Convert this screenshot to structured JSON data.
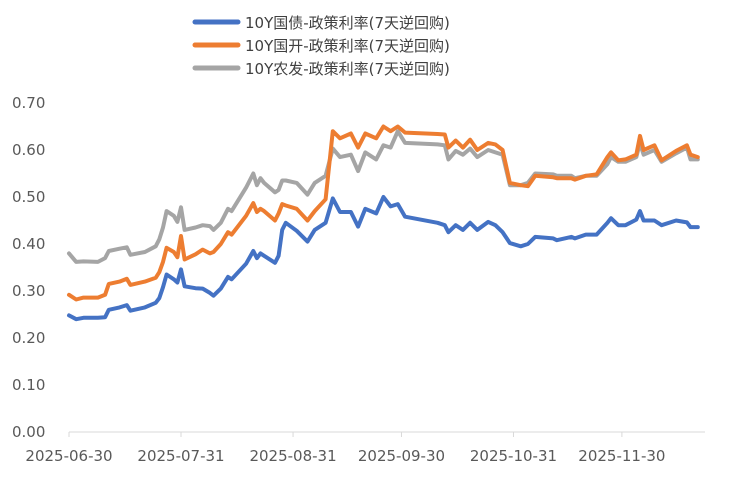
{
  "chart_data": {
    "type": "line",
    "title": "",
    "xlabel": "",
    "ylabel": "",
    "ylim": [
      0,
      0.7
    ],
    "yticks": [
      "0.00",
      "0.10",
      "0.20",
      "0.30",
      "0.40",
      "0.50",
      "0.60",
      "0.70"
    ],
    "xticks": [
      "2025-06-30",
      "2025-07-31",
      "2025-08-31",
      "2025-09-30",
      "2025-10-31",
      "2025-11-30"
    ],
    "xrange": [
      "2025-06-30",
      "2025-12-23"
    ],
    "grid": false,
    "legend_position": "top",
    "series": [
      {
        "name": "10Y国债-政策利率(7天逆回购)",
        "color": "#4472C4",
        "points": [
          [
            "2025-06-30",
            0.248
          ],
          [
            "2025-07-02",
            0.24
          ],
          [
            "2025-07-04",
            0.243
          ],
          [
            "2025-07-08",
            0.243
          ],
          [
            "2025-07-10",
            0.244
          ],
          [
            "2025-07-11",
            0.26
          ],
          [
            "2025-07-14",
            0.265
          ],
          [
            "2025-07-16",
            0.27
          ],
          [
            "2025-07-17",
            0.258
          ],
          [
            "2025-07-21",
            0.265
          ],
          [
            "2025-07-24",
            0.275
          ],
          [
            "2025-07-25",
            0.285
          ],
          [
            "2025-07-26",
            0.308
          ],
          [
            "2025-07-27",
            0.335
          ],
          [
            "2025-07-29",
            0.325
          ],
          [
            "2025-07-30",
            0.318
          ],
          [
            "2025-07-31",
            0.346
          ],
          [
            "2025-08-01",
            0.31
          ],
          [
            "2025-08-04",
            0.306
          ],
          [
            "2025-08-06",
            0.305
          ],
          [
            "2025-08-08",
            0.296
          ],
          [
            "2025-08-09",
            0.29
          ],
          [
            "2025-08-11",
            0.305
          ],
          [
            "2025-08-13",
            0.33
          ],
          [
            "2025-08-14",
            0.325
          ],
          [
            "2025-08-18",
            0.358
          ],
          [
            "2025-08-20",
            0.385
          ],
          [
            "2025-08-21",
            0.37
          ],
          [
            "2025-08-22",
            0.38
          ],
          [
            "2025-08-23",
            0.375
          ],
          [
            "2025-08-26",
            0.36
          ],
          [
            "2025-08-27",
            0.375
          ],
          [
            "2025-08-28",
            0.43
          ],
          [
            "2025-08-29",
            0.445
          ],
          [
            "2025-09-01",
            0.428
          ],
          [
            "2025-09-04",
            0.405
          ],
          [
            "2025-09-06",
            0.43
          ],
          [
            "2025-09-09",
            0.445
          ],
          [
            "2025-09-11",
            0.497
          ],
          [
            "2025-09-13",
            0.468
          ],
          [
            "2025-09-16",
            0.468
          ],
          [
            "2025-09-18",
            0.437
          ],
          [
            "2025-09-20",
            0.475
          ],
          [
            "2025-09-23",
            0.465
          ],
          [
            "2025-09-25",
            0.5
          ],
          [
            "2025-09-27",
            0.48
          ],
          [
            "2025-09-29",
            0.485
          ],
          [
            "2025-10-01",
            0.458
          ],
          [
            "2025-10-10",
            0.445
          ],
          [
            "2025-10-12",
            0.44
          ],
          [
            "2025-10-13",
            0.425
          ],
          [
            "2025-10-15",
            0.44
          ],
          [
            "2025-10-17",
            0.43
          ],
          [
            "2025-10-19",
            0.445
          ],
          [
            "2025-10-21",
            0.43
          ],
          [
            "2025-10-24",
            0.447
          ],
          [
            "2025-10-26",
            0.44
          ],
          [
            "2025-10-28",
            0.425
          ],
          [
            "2025-10-30",
            0.402
          ],
          [
            "2025-11-02",
            0.395
          ],
          [
            "2025-11-04",
            0.4
          ],
          [
            "2025-11-06",
            0.415
          ],
          [
            "2025-11-11",
            0.412
          ],
          [
            "2025-11-12",
            0.408
          ],
          [
            "2025-11-16",
            0.415
          ],
          [
            "2025-11-17",
            0.412
          ],
          [
            "2025-11-20",
            0.42
          ],
          [
            "2025-11-23",
            0.42
          ],
          [
            "2025-11-26",
            0.445
          ],
          [
            "2025-11-27",
            0.455
          ],
          [
            "2025-11-29",
            0.44
          ],
          [
            "2025-12-01",
            0.44
          ],
          [
            "2025-12-04",
            0.452
          ],
          [
            "2025-12-05",
            0.47
          ],
          [
            "2025-12-06",
            0.45
          ],
          [
            "2025-12-09",
            0.45
          ],
          [
            "2025-12-11",
            0.44
          ],
          [
            "2025-12-15",
            0.45
          ],
          [
            "2025-12-18",
            0.446
          ],
          [
            "2025-12-19",
            0.436
          ],
          [
            "2025-12-21",
            0.436
          ]
        ]
      },
      {
        "name": "10Y国开-政策利率(7天逆回购)",
        "color": "#ED7D31",
        "points": [
          [
            "2025-06-30",
            0.292
          ],
          [
            "2025-07-02",
            0.282
          ],
          [
            "2025-07-04",
            0.286
          ],
          [
            "2025-07-08",
            0.286
          ],
          [
            "2025-07-10",
            0.292
          ],
          [
            "2025-07-11",
            0.315
          ],
          [
            "2025-07-14",
            0.32
          ],
          [
            "2025-07-16",
            0.326
          ],
          [
            "2025-07-17",
            0.313
          ],
          [
            "2025-07-21",
            0.32
          ],
          [
            "2025-07-24",
            0.328
          ],
          [
            "2025-07-25",
            0.34
          ],
          [
            "2025-07-26",
            0.362
          ],
          [
            "2025-07-27",
            0.392
          ],
          [
            "2025-07-29",
            0.383
          ],
          [
            "2025-07-30",
            0.372
          ],
          [
            "2025-07-31",
            0.417
          ],
          [
            "2025-08-01",
            0.367
          ],
          [
            "2025-08-04",
            0.378
          ],
          [
            "2025-08-06",
            0.388
          ],
          [
            "2025-08-08",
            0.38
          ],
          [
            "2025-08-09",
            0.383
          ],
          [
            "2025-08-11",
            0.4
          ],
          [
            "2025-08-13",
            0.425
          ],
          [
            "2025-08-14",
            0.42
          ],
          [
            "2025-08-18",
            0.46
          ],
          [
            "2025-08-20",
            0.487
          ],
          [
            "2025-08-21",
            0.468
          ],
          [
            "2025-08-22",
            0.475
          ],
          [
            "2025-08-23",
            0.47
          ],
          [
            "2025-08-26",
            0.45
          ],
          [
            "2025-08-27",
            0.465
          ],
          [
            "2025-08-28",
            0.485
          ],
          [
            "2025-08-29",
            0.482
          ],
          [
            "2025-09-01",
            0.475
          ],
          [
            "2025-09-04",
            0.45
          ],
          [
            "2025-09-06",
            0.47
          ],
          [
            "2025-09-09",
            0.495
          ],
          [
            "2025-09-11",
            0.64
          ],
          [
            "2025-09-13",
            0.625
          ],
          [
            "2025-09-16",
            0.635
          ],
          [
            "2025-09-18",
            0.605
          ],
          [
            "2025-09-20",
            0.635
          ],
          [
            "2025-09-23",
            0.625
          ],
          [
            "2025-09-25",
            0.65
          ],
          [
            "2025-09-27",
            0.64
          ],
          [
            "2025-09-29",
            0.65
          ],
          [
            "2025-10-01",
            0.637
          ],
          [
            "2025-10-10",
            0.634
          ],
          [
            "2025-10-12",
            0.633
          ],
          [
            "2025-10-13",
            0.605
          ],
          [
            "2025-10-15",
            0.62
          ],
          [
            "2025-10-17",
            0.605
          ],
          [
            "2025-10-19",
            0.622
          ],
          [
            "2025-10-21",
            0.6
          ],
          [
            "2025-10-24",
            0.615
          ],
          [
            "2025-10-26",
            0.612
          ],
          [
            "2025-10-28",
            0.6
          ],
          [
            "2025-10-30",
            0.53
          ],
          [
            "2025-11-02",
            0.525
          ],
          [
            "2025-11-04",
            0.523
          ],
          [
            "2025-11-06",
            0.545
          ],
          [
            "2025-11-11",
            0.542
          ],
          [
            "2025-11-12",
            0.54
          ],
          [
            "2025-11-16",
            0.54
          ],
          [
            "2025-11-17",
            0.537
          ],
          [
            "2025-11-20",
            0.545
          ],
          [
            "2025-11-23",
            0.548
          ],
          [
            "2025-11-26",
            0.585
          ],
          [
            "2025-11-27",
            0.595
          ],
          [
            "2025-11-29",
            0.578
          ],
          [
            "2025-12-01",
            0.58
          ],
          [
            "2025-12-04",
            0.59
          ],
          [
            "2025-12-05",
            0.63
          ],
          [
            "2025-12-06",
            0.6
          ],
          [
            "2025-12-09",
            0.61
          ],
          [
            "2025-12-11",
            0.578
          ],
          [
            "2025-12-15",
            0.598
          ],
          [
            "2025-12-18",
            0.61
          ],
          [
            "2025-12-19",
            0.59
          ],
          [
            "2025-12-21",
            0.585
          ]
        ]
      },
      {
        "name": "10Y农发-政策利率(7天逆回购)",
        "color": "#A5A5A5",
        "points": [
          [
            "2025-06-30",
            0.38
          ],
          [
            "2025-07-02",
            0.362
          ],
          [
            "2025-07-04",
            0.363
          ],
          [
            "2025-07-08",
            0.362
          ],
          [
            "2025-07-10",
            0.37
          ],
          [
            "2025-07-11",
            0.385
          ],
          [
            "2025-07-14",
            0.39
          ],
          [
            "2025-07-16",
            0.393
          ],
          [
            "2025-07-17",
            0.377
          ],
          [
            "2025-07-21",
            0.383
          ],
          [
            "2025-07-24",
            0.395
          ],
          [
            "2025-07-25",
            0.41
          ],
          [
            "2025-07-26",
            0.435
          ],
          [
            "2025-07-27",
            0.47
          ],
          [
            "2025-07-29",
            0.46
          ],
          [
            "2025-07-30",
            0.447
          ],
          [
            "2025-07-31",
            0.478
          ],
          [
            "2025-08-01",
            0.43
          ],
          [
            "2025-08-04",
            0.435
          ],
          [
            "2025-08-06",
            0.44
          ],
          [
            "2025-08-08",
            0.438
          ],
          [
            "2025-08-09",
            0.43
          ],
          [
            "2025-08-11",
            0.445
          ],
          [
            "2025-08-13",
            0.475
          ],
          [
            "2025-08-14",
            0.47
          ],
          [
            "2025-08-18",
            0.52
          ],
          [
            "2025-08-20",
            0.55
          ],
          [
            "2025-08-21",
            0.525
          ],
          [
            "2025-08-22",
            0.54
          ],
          [
            "2025-08-23",
            0.53
          ],
          [
            "2025-08-26",
            0.51
          ],
          [
            "2025-08-27",
            0.515
          ],
          [
            "2025-08-28",
            0.535
          ],
          [
            "2025-08-29",
            0.535
          ],
          [
            "2025-09-01",
            0.53
          ],
          [
            "2025-09-04",
            0.505
          ],
          [
            "2025-09-06",
            0.53
          ],
          [
            "2025-09-09",
            0.545
          ],
          [
            "2025-09-11",
            0.603
          ],
          [
            "2025-09-13",
            0.585
          ],
          [
            "2025-09-16",
            0.59
          ],
          [
            "2025-09-18",
            0.555
          ],
          [
            "2025-09-20",
            0.595
          ],
          [
            "2025-09-23",
            0.58
          ],
          [
            "2025-09-25",
            0.61
          ],
          [
            "2025-09-27",
            0.605
          ],
          [
            "2025-09-29",
            0.64
          ],
          [
            "2025-10-01",
            0.615
          ],
          [
            "2025-10-10",
            0.612
          ],
          [
            "2025-10-12",
            0.61
          ],
          [
            "2025-10-13",
            0.58
          ],
          [
            "2025-10-15",
            0.598
          ],
          [
            "2025-10-17",
            0.59
          ],
          [
            "2025-10-19",
            0.603
          ],
          [
            "2025-10-21",
            0.585
          ],
          [
            "2025-10-24",
            0.6
          ],
          [
            "2025-10-26",
            0.595
          ],
          [
            "2025-10-28",
            0.59
          ],
          [
            "2025-10-30",
            0.525
          ],
          [
            "2025-11-02",
            0.525
          ],
          [
            "2025-11-04",
            0.53
          ],
          [
            "2025-11-06",
            0.55
          ],
          [
            "2025-11-11",
            0.548
          ],
          [
            "2025-11-12",
            0.545
          ],
          [
            "2025-11-16",
            0.545
          ],
          [
            "2025-11-17",
            0.54
          ],
          [
            "2025-11-20",
            0.545
          ],
          [
            "2025-11-23",
            0.545
          ],
          [
            "2025-11-26",
            0.57
          ],
          [
            "2025-11-27",
            0.585
          ],
          [
            "2025-11-29",
            0.575
          ],
          [
            "2025-12-01",
            0.575
          ],
          [
            "2025-12-04",
            0.585
          ],
          [
            "2025-12-05",
            0.615
          ],
          [
            "2025-12-06",
            0.59
          ],
          [
            "2025-12-09",
            0.6
          ],
          [
            "2025-12-11",
            0.575
          ],
          [
            "2025-12-15",
            0.593
          ],
          [
            "2025-12-18",
            0.605
          ],
          [
            "2025-12-19",
            0.58
          ],
          [
            "2025-12-21",
            0.58
          ]
        ]
      }
    ]
  }
}
